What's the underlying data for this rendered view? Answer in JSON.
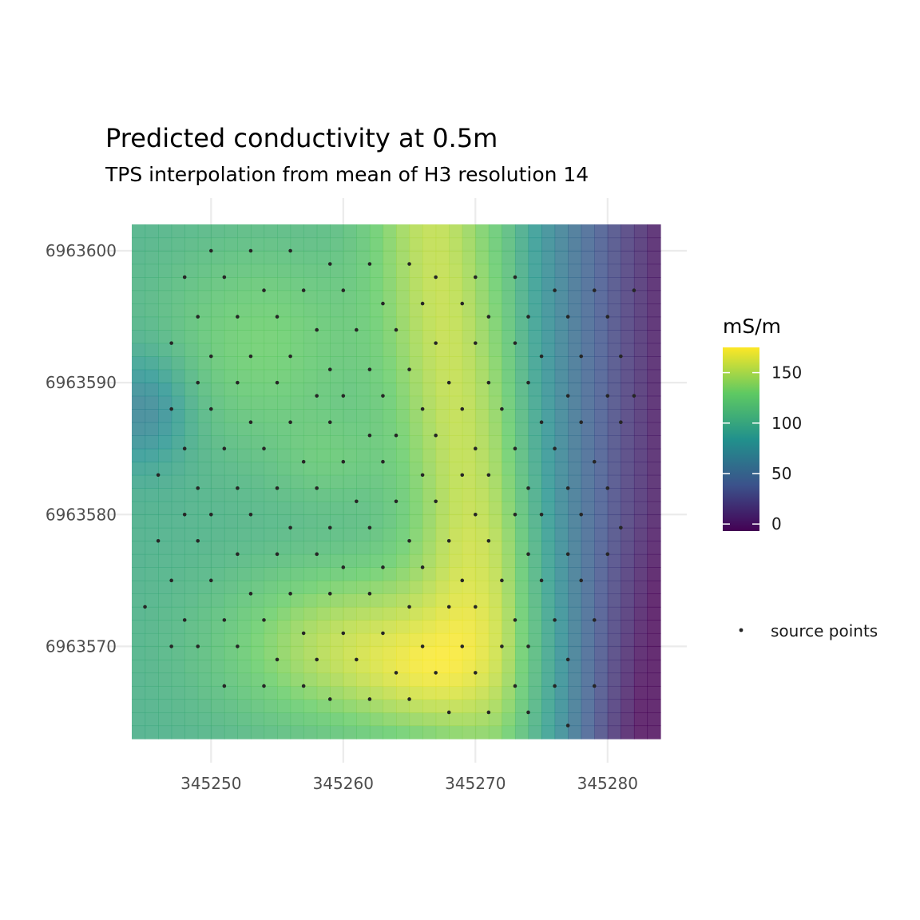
{
  "chart_data": {
    "type": "heatmap",
    "title": "Predicted conductivity at 0.5m",
    "subtitle": "TPS interpolation from mean of H3 resolution 14",
    "xlabel": "",
    "ylabel": "",
    "xlim": [
      345244,
      345284
    ],
    "ylim": [
      6963563,
      6963602
    ],
    "x_ticks": [
      345250,
      345260,
      345270,
      345280
    ],
    "y_ticks": [
      6963570,
      6963580,
      6963590,
      6963600
    ],
    "x_tick_labels": [
      "345250",
      "345260",
      "345270",
      "345280"
    ],
    "y_tick_labels": [
      "6963570",
      "6963580",
      "6963590",
      "6963600"
    ],
    "grid": true,
    "colorbar": {
      "title": "mS/m",
      "palette": "viridis",
      "colors": [
        "#440154",
        "#3b528b",
        "#21918c",
        "#5ec962",
        "#fde725"
      ],
      "range": [
        -7,
        175
      ],
      "ticks": [
        0,
        50,
        100,
        150
      ],
      "tick_labels": [
        "0",
        "50",
        "100",
        "150"
      ],
      "placement": "right"
    },
    "legend": {
      "label": "source points",
      "placement": "right"
    },
    "field_description_points": [],
    "grid_cells": {
      "nx": 40,
      "ny": 39,
      "cell_size": 1
    },
    "source_points": [
      [
        345250,
        6963600
      ],
      [
        345253,
        6963600
      ],
      [
        345256,
        6963600
      ],
      [
        345259,
        6963599
      ],
      [
        345262,
        6963599
      ],
      [
        345265,
        6963599
      ],
      [
        345267,
        6963598
      ],
      [
        345270,
        6963598
      ],
      [
        345273,
        6963598
      ],
      [
        345276,
        6963597
      ],
      [
        345279,
        6963597
      ],
      [
        345282,
        6963597
      ],
      [
        345248,
        6963598
      ],
      [
        345251,
        6963598
      ],
      [
        345254,
        6963597
      ],
      [
        345257,
        6963597
      ],
      [
        345260,
        6963597
      ],
      [
        345263,
        6963596
      ],
      [
        345266,
        6963596
      ],
      [
        345269,
        6963596
      ],
      [
        345271,
        6963595
      ],
      [
        345274,
        6963595
      ],
      [
        345277,
        6963595
      ],
      [
        345280,
        6963595
      ],
      [
        345249,
        6963595
      ],
      [
        345252,
        6963595
      ],
      [
        345255,
        6963595
      ],
      [
        345258,
        6963594
      ],
      [
        345261,
        6963594
      ],
      [
        345264,
        6963594
      ],
      [
        345267,
        6963593
      ],
      [
        345270,
        6963593
      ],
      [
        345273,
        6963593
      ],
      [
        345275,
        6963592
      ],
      [
        345278,
        6963592
      ],
      [
        345281,
        6963592
      ],
      [
        345247,
        6963593
      ],
      [
        345250,
        6963592
      ],
      [
        345253,
        6963592
      ],
      [
        345256,
        6963592
      ],
      [
        345259,
        6963591
      ],
      [
        345262,
        6963591
      ],
      [
        345265,
        6963591
      ],
      [
        345268,
        6963590
      ],
      [
        345271,
        6963590
      ],
      [
        345274,
        6963590
      ],
      [
        345277,
        6963589
      ],
      [
        345280,
        6963589
      ],
      [
        345282,
        6963589
      ],
      [
        345249,
        6963590
      ],
      [
        345252,
        6963590
      ],
      [
        345255,
        6963590
      ],
      [
        345258,
        6963589
      ],
      [
        345260,
        6963589
      ],
      [
        345263,
        6963589
      ],
      [
        345266,
        6963588
      ],
      [
        345269,
        6963588
      ],
      [
        345272,
        6963588
      ],
      [
        345275,
        6963587
      ],
      [
        345278,
        6963587
      ],
      [
        345281,
        6963587
      ],
      [
        345247,
        6963588
      ],
      [
        345250,
        6963588
      ],
      [
        345253,
        6963587
      ],
      [
        345256,
        6963587
      ],
      [
        345259,
        6963587
      ],
      [
        345262,
        6963586
      ],
      [
        345264,
        6963586
      ],
      [
        345267,
        6963586
      ],
      [
        345270,
        6963585
      ],
      [
        345273,
        6963585
      ],
      [
        345276,
        6963585
      ],
      [
        345279,
        6963584
      ],
      [
        345248,
        6963585
      ],
      [
        345251,
        6963585
      ],
      [
        345254,
        6963585
      ],
      [
        345257,
        6963584
      ],
      [
        345260,
        6963584
      ],
      [
        345263,
        6963584
      ],
      [
        345266,
        6963583
      ],
      [
        345269,
        6963583
      ],
      [
        345271,
        6963583
      ],
      [
        345274,
        6963582
      ],
      [
        345277,
        6963582
      ],
      [
        345280,
        6963582
      ],
      [
        345246,
        6963583
      ],
      [
        345249,
        6963582
      ],
      [
        345252,
        6963582
      ],
      [
        345255,
        6963582
      ],
      [
        345258,
        6963582
      ],
      [
        345261,
        6963581
      ],
      [
        345264,
        6963581
      ],
      [
        345267,
        6963581
      ],
      [
        345270,
        6963580
      ],
      [
        345273,
        6963580
      ],
      [
        345275,
        6963580
      ],
      [
        345278,
        6963580
      ],
      [
        345281,
        6963579
      ],
      [
        345248,
        6963580
      ],
      [
        345250,
        6963580
      ],
      [
        345253,
        6963580
      ],
      [
        345256,
        6963579
      ],
      [
        345259,
        6963579
      ],
      [
        345262,
        6963579
      ],
      [
        345265,
        6963578
      ],
      [
        345268,
        6963578
      ],
      [
        345271,
        6963578
      ],
      [
        345274,
        6963577
      ],
      [
        345277,
        6963577
      ],
      [
        345280,
        6963577
      ],
      [
        345246,
        6963578
      ],
      [
        345249,
        6963578
      ],
      [
        345252,
        6963577
      ],
      [
        345255,
        6963577
      ],
      [
        345258,
        6963577
      ],
      [
        345260,
        6963576
      ],
      [
        345263,
        6963576
      ],
      [
        345266,
        6963576
      ],
      [
        345269,
        6963575
      ],
      [
        345272,
        6963575
      ],
      [
        345275,
        6963575
      ],
      [
        345278,
        6963575
      ],
      [
        345247,
        6963575
      ],
      [
        345250,
        6963575
      ],
      [
        345253,
        6963574
      ],
      [
        345256,
        6963574
      ],
      [
        345259,
        6963574
      ],
      [
        345262,
        6963574
      ],
      [
        345265,
        6963573
      ],
      [
        345268,
        6963573
      ],
      [
        345270,
        6963573
      ],
      [
        345273,
        6963572
      ],
      [
        345276,
        6963572
      ],
      [
        345279,
        6963572
      ],
      [
        345245,
        6963573
      ],
      [
        345248,
        6963572
      ],
      [
        345251,
        6963572
      ],
      [
        345254,
        6963572
      ],
      [
        345257,
        6963571
      ],
      [
        345260,
        6963571
      ],
      [
        345263,
        6963571
      ],
      [
        345266,
        6963570
      ],
      [
        345269,
        6963570
      ],
      [
        345272,
        6963570
      ],
      [
        345274,
        6963570
      ],
      [
        345277,
        6963569
      ],
      [
        345247,
        6963570
      ],
      [
        345249,
        6963570
      ],
      [
        345252,
        6963570
      ],
      [
        345255,
        6963569
      ],
      [
        345258,
        6963569
      ],
      [
        345261,
        6963569
      ],
      [
        345264,
        6963568
      ],
      [
        345267,
        6963568
      ],
      [
        345270,
        6963568
      ],
      [
        345273,
        6963567
      ],
      [
        345276,
        6963567
      ],
      [
        345279,
        6963567
      ],
      [
        345251,
        6963567
      ],
      [
        345254,
        6963567
      ],
      [
        345257,
        6963567
      ],
      [
        345259,
        6963566
      ],
      [
        345262,
        6963566
      ],
      [
        345265,
        6963566
      ],
      [
        345268,
        6963565
      ],
      [
        345271,
        6963565
      ],
      [
        345274,
        6963565
      ],
      [
        345277,
        6963564
      ]
    ]
  }
}
